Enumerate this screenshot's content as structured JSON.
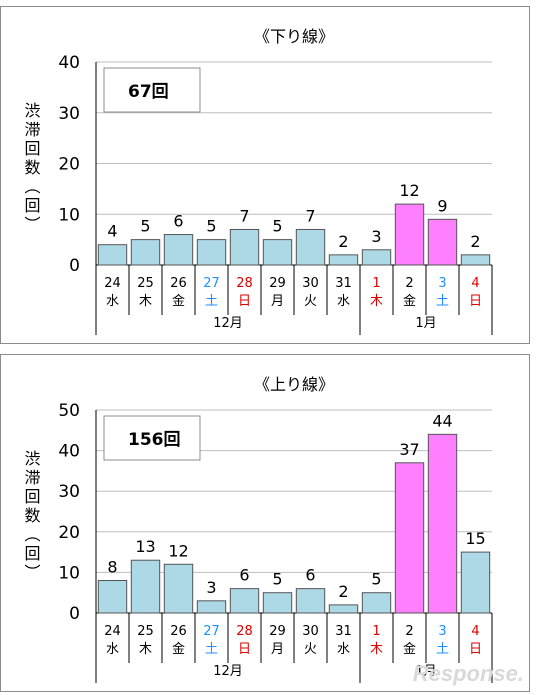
{
  "colors": {
    "bar_fill": "#add8e6",
    "bar_highlight": "#ff80ff",
    "bar_stroke": "#555555",
    "blue_text": "#1e90ff",
    "red_text": "#e00000",
    "grid": "#bfbfbf"
  },
  "watermark": "Response.",
  "chart_data": [
    {
      "type": "bar",
      "title": "《下り線》",
      "total_label": "67回",
      "ylabel": "渋滞回数（回）",
      "ylim": [
        0,
        40
      ],
      "yticks": [
        0,
        10,
        20,
        30,
        40
      ],
      "grid": true,
      "categories": [
        {
          "day": "24",
          "weekday": "水",
          "color": "black"
        },
        {
          "day": "25",
          "weekday": "木",
          "color": "black"
        },
        {
          "day": "26",
          "weekday": "金",
          "color": "black"
        },
        {
          "day": "27",
          "weekday": "土",
          "color": "blue"
        },
        {
          "day": "28",
          "weekday": "日",
          "color": "red"
        },
        {
          "day": "29",
          "weekday": "月",
          "color": "black"
        },
        {
          "day": "30",
          "weekday": "火",
          "color": "black"
        },
        {
          "day": "31",
          "weekday": "水",
          "color": "black"
        },
        {
          "day": "1",
          "weekday": "木",
          "color": "red"
        },
        {
          "day": "2",
          "weekday": "金",
          "color": "black"
        },
        {
          "day": "3",
          "weekday": "土",
          "color": "blue"
        },
        {
          "day": "4",
          "weekday": "日",
          "color": "red"
        }
      ],
      "months": [
        {
          "label": "12月",
          "start": 0,
          "end": 7
        },
        {
          "label": "1月",
          "start": 8,
          "end": 11
        }
      ],
      "values": [
        4,
        5,
        6,
        5,
        7,
        5,
        7,
        2,
        3,
        12,
        9,
        2
      ],
      "highlight": [
        false,
        false,
        false,
        false,
        false,
        false,
        false,
        false,
        false,
        true,
        true,
        false
      ]
    },
    {
      "type": "bar",
      "title": "《上り線》",
      "total_label": "156回",
      "ylabel": "渋滞回数（回）",
      "ylim": [
        0,
        50
      ],
      "yticks": [
        0,
        10,
        20,
        30,
        40,
        50
      ],
      "grid": true,
      "categories": [
        {
          "day": "24",
          "weekday": "水",
          "color": "black"
        },
        {
          "day": "25",
          "weekday": "木",
          "color": "black"
        },
        {
          "day": "26",
          "weekday": "金",
          "color": "black"
        },
        {
          "day": "27",
          "weekday": "土",
          "color": "blue"
        },
        {
          "day": "28",
          "weekday": "日",
          "color": "red"
        },
        {
          "day": "29",
          "weekday": "月",
          "color": "black"
        },
        {
          "day": "30",
          "weekday": "火",
          "color": "black"
        },
        {
          "day": "31",
          "weekday": "水",
          "color": "black"
        },
        {
          "day": "1",
          "weekday": "木",
          "color": "red"
        },
        {
          "day": "2",
          "weekday": "金",
          "color": "black"
        },
        {
          "day": "3",
          "weekday": "土",
          "color": "blue"
        },
        {
          "day": "4",
          "weekday": "日",
          "color": "red"
        }
      ],
      "months": [
        {
          "label": "12月",
          "start": 0,
          "end": 7
        },
        {
          "label": "1月",
          "start": 8,
          "end": 11
        }
      ],
      "values": [
        8,
        13,
        12,
        3,
        6,
        5,
        6,
        2,
        5,
        37,
        44,
        15
      ],
      "highlight": [
        false,
        false,
        false,
        false,
        false,
        false,
        false,
        false,
        false,
        true,
        true,
        false
      ]
    }
  ]
}
